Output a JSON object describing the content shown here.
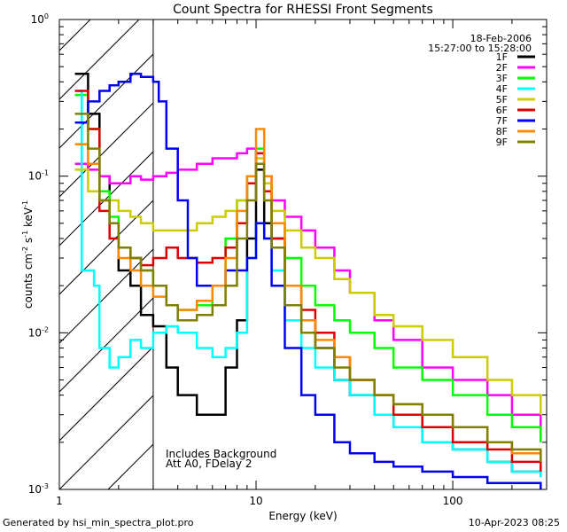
{
  "chart_data": {
    "type": "line",
    "title": "Count Spectra for RHESSI Front Segments",
    "xlabel": "Energy (keV)",
    "ylabel": "counts cm-2 s-1 keV-1",
    "xscale": "log",
    "yscale": "log",
    "xlim": [
      1,
      300
    ],
    "ylim": [
      0.001,
      1
    ],
    "x_ticks": [
      "1",
      "10",
      "100"
    ],
    "y_ticks": [
      "10-3",
      "10-2",
      "10-1",
      "100"
    ],
    "legend_position": "top-right",
    "date_label": "18-Feb-2006",
    "time_label": "15:27:00 to 15:28:00",
    "annotations": [
      "Includes Background",
      "Att A0, FDelay 2"
    ],
    "attenuator_cutoff_kev": 3,
    "series": [
      {
        "name": "1F",
        "color": "#000000",
        "points": [
          [
            1.2,
            0.45
          ],
          [
            1.4,
            0.25
          ],
          [
            1.6,
            0.1
          ],
          [
            1.8,
            0.05
          ],
          [
            2.0,
            0.025
          ],
          [
            2.3,
            0.02
          ],
          [
            2.6,
            0.013
          ],
          [
            3.0,
            0.011
          ],
          [
            3.5,
            0.006
          ],
          [
            4.0,
            0.004
          ],
          [
            5.0,
            0.003
          ],
          [
            6.0,
            0.003
          ],
          [
            7.0,
            0.006
          ],
          [
            8.0,
            0.012
          ],
          [
            9.0,
            0.04
          ],
          [
            10.0,
            0.11
          ],
          [
            11.0,
            0.05
          ],
          [
            12.0,
            0.04
          ],
          [
            14.0,
            0.02
          ],
          [
            17.0,
            0.012
          ],
          [
            20.0,
            0.008
          ],
          [
            25.0,
            0.005
          ],
          [
            30.0,
            0.004
          ],
          [
            40.0,
            0.003
          ],
          [
            50.0,
            0.0025
          ],
          [
            70.0,
            0.002
          ],
          [
            100.0,
            0.0018
          ],
          [
            150.0,
            0.0015
          ],
          [
            200.0,
            0.0013
          ],
          [
            280.0,
            0.0012
          ]
        ]
      },
      {
        "name": "2F",
        "color": "#ff00ff",
        "points": [
          [
            1.2,
            0.12
          ],
          [
            1.4,
            0.11
          ],
          [
            1.6,
            0.1
          ],
          [
            1.8,
            0.09
          ],
          [
            2.0,
            0.09
          ],
          [
            2.3,
            0.1
          ],
          [
            2.6,
            0.095
          ],
          [
            3.0,
            0.1
          ],
          [
            3.5,
            0.105
          ],
          [
            4.0,
            0.11
          ],
          [
            5.0,
            0.12
          ],
          [
            6.0,
            0.13
          ],
          [
            7.0,
            0.13
          ],
          [
            8.0,
            0.14
          ],
          [
            9.0,
            0.15
          ],
          [
            10.0,
            0.14
          ],
          [
            11.0,
            0.1
          ],
          [
            12.0,
            0.07
          ],
          [
            14.0,
            0.055
          ],
          [
            17.0,
            0.045
          ],
          [
            20.0,
            0.035
          ],
          [
            25.0,
            0.025
          ],
          [
            30.0,
            0.018
          ],
          [
            40.0,
            0.012
          ],
          [
            50.0,
            0.009
          ],
          [
            70.0,
            0.006
          ],
          [
            100.0,
            0.005
          ],
          [
            150.0,
            0.004
          ],
          [
            200.0,
            0.003
          ],
          [
            280.0,
            0.002
          ]
        ]
      },
      {
        "name": "3F",
        "color": "#00ff00",
        "points": [
          [
            1.2,
            0.33
          ],
          [
            1.4,
            0.2
          ],
          [
            1.6,
            0.08
          ],
          [
            1.8,
            0.055
          ],
          [
            2.0,
            0.035
          ],
          [
            2.3,
            0.03
          ],
          [
            2.6,
            0.025
          ],
          [
            3.0,
            0.02
          ],
          [
            3.5,
            0.015
          ],
          [
            4.0,
            0.014
          ],
          [
            5.0,
            0.015
          ],
          [
            6.0,
            0.02
          ],
          [
            7.0,
            0.04
          ],
          [
            8.0,
            0.07
          ],
          [
            9.0,
            0.1
          ],
          [
            10.0,
            0.15
          ],
          [
            11.0,
            0.09
          ],
          [
            12.0,
            0.05
          ],
          [
            14.0,
            0.03
          ],
          [
            17.0,
            0.02
          ],
          [
            20.0,
            0.015
          ],
          [
            25.0,
            0.012
          ],
          [
            30.0,
            0.01
          ],
          [
            40.0,
            0.008
          ],
          [
            50.0,
            0.006
          ],
          [
            70.0,
            0.005
          ],
          [
            100.0,
            0.004
          ],
          [
            150.0,
            0.003
          ],
          [
            200.0,
            0.0025
          ],
          [
            280.0,
            0.002
          ]
        ]
      },
      {
        "name": "4F",
        "color": "#00ffff",
        "points": [
          [
            1.2,
            0.35
          ],
          [
            1.3,
            0.025
          ],
          [
            1.5,
            0.02
          ],
          [
            1.6,
            0.008
          ],
          [
            1.8,
            0.006
          ],
          [
            2.0,
            0.007
          ],
          [
            2.3,
            0.009
          ],
          [
            2.6,
            0.008
          ],
          [
            3.0,
            0.01
          ],
          [
            3.5,
            0.011
          ],
          [
            4.0,
            0.01
          ],
          [
            5.0,
            0.008
          ],
          [
            6.0,
            0.007
          ],
          [
            7.0,
            0.008
          ],
          [
            8.0,
            0.01
          ],
          [
            9.0,
            0.03
          ],
          [
            10.0,
            0.05
          ],
          [
            11.0,
            0.04
          ],
          [
            12.0,
            0.025
          ],
          [
            14.0,
            0.012
          ],
          [
            17.0,
            0.008
          ],
          [
            20.0,
            0.006
          ],
          [
            25.0,
            0.005
          ],
          [
            30.0,
            0.004
          ],
          [
            40.0,
            0.003
          ],
          [
            50.0,
            0.0025
          ],
          [
            70.0,
            0.002
          ],
          [
            100.0,
            0.0018
          ],
          [
            150.0,
            0.0015
          ],
          [
            200.0,
            0.0013
          ],
          [
            280.0,
            0.0012
          ]
        ]
      },
      {
        "name": "5F",
        "color": "#cccc00",
        "points": [
          [
            1.2,
            0.11
          ],
          [
            1.4,
            0.08
          ],
          [
            1.6,
            0.07
          ],
          [
            1.8,
            0.07
          ],
          [
            2.0,
            0.06
          ],
          [
            2.3,
            0.055
          ],
          [
            2.6,
            0.05
          ],
          [
            3.0,
            0.045
          ],
          [
            3.5,
            0.045
          ],
          [
            4.0,
            0.045
          ],
          [
            5.0,
            0.05
          ],
          [
            6.0,
            0.055
          ],
          [
            7.0,
            0.06
          ],
          [
            8.0,
            0.07
          ],
          [
            9.0,
            0.1
          ],
          [
            10.0,
            0.13
          ],
          [
            11.0,
            0.09
          ],
          [
            12.0,
            0.06
          ],
          [
            14.0,
            0.045
          ],
          [
            17.0,
            0.035
          ],
          [
            20.0,
            0.03
          ],
          [
            25.0,
            0.022
          ],
          [
            30.0,
            0.018
          ],
          [
            40.0,
            0.013
          ],
          [
            50.0,
            0.011
          ],
          [
            70.0,
            0.009
          ],
          [
            100.0,
            0.007
          ],
          [
            150.0,
            0.005
          ],
          [
            200.0,
            0.004
          ],
          [
            280.0,
            0.003
          ]
        ]
      },
      {
        "name": "6F",
        "color": "#dd0000",
        "points": [
          [
            1.2,
            0.35
          ],
          [
            1.4,
            0.2
          ],
          [
            1.6,
            0.06
          ],
          [
            1.8,
            0.04
          ],
          [
            2.0,
            0.035
          ],
          [
            2.3,
            0.03
          ],
          [
            2.6,
            0.027
          ],
          [
            3.0,
            0.03
          ],
          [
            3.5,
            0.035
          ],
          [
            4.0,
            0.03
          ],
          [
            5.0,
            0.028
          ],
          [
            6.0,
            0.03
          ],
          [
            7.0,
            0.035
          ],
          [
            8.0,
            0.05
          ],
          [
            9.0,
            0.09
          ],
          [
            10.0,
            0.14
          ],
          [
            11.0,
            0.08
          ],
          [
            12.0,
            0.04
          ],
          [
            14.0,
            0.02
          ],
          [
            17.0,
            0.014
          ],
          [
            20.0,
            0.01
          ],
          [
            25.0,
            0.007
          ],
          [
            30.0,
            0.005
          ],
          [
            40.0,
            0.004
          ],
          [
            50.0,
            0.003
          ],
          [
            70.0,
            0.0025
          ],
          [
            100.0,
            0.002
          ],
          [
            150.0,
            0.0018
          ],
          [
            200.0,
            0.0015
          ],
          [
            280.0,
            0.0013
          ]
        ]
      },
      {
        "name": "7F",
        "color": "#0000ee",
        "points": [
          [
            1.2,
            0.22
          ],
          [
            1.4,
            0.3
          ],
          [
            1.6,
            0.35
          ],
          [
            1.8,
            0.38
          ],
          [
            2.0,
            0.4
          ],
          [
            2.3,
            0.45
          ],
          [
            2.6,
            0.43
          ],
          [
            3.0,
            0.4
          ],
          [
            3.2,
            0.3
          ],
          [
            3.5,
            0.15
          ],
          [
            4.0,
            0.07
          ],
          [
            4.5,
            0.03
          ],
          [
            5.0,
            0.02
          ],
          [
            6.0,
            0.02
          ],
          [
            7.0,
            0.025
          ],
          [
            8.0,
            0.025
          ],
          [
            9.0,
            0.03
          ],
          [
            10.0,
            0.05
          ],
          [
            11.0,
            0.04
          ],
          [
            12.0,
            0.02
          ],
          [
            14.0,
            0.008
          ],
          [
            17.0,
            0.004
          ],
          [
            20.0,
            0.003
          ],
          [
            25.0,
            0.002
          ],
          [
            30.0,
            0.0017
          ],
          [
            40.0,
            0.0015
          ],
          [
            50.0,
            0.0014
          ],
          [
            70.0,
            0.0013
          ],
          [
            100.0,
            0.0012
          ],
          [
            150.0,
            0.0011
          ],
          [
            200.0,
            0.0011
          ],
          [
            280.0,
            0.001
          ]
        ]
      },
      {
        "name": "8F",
        "color": "#ff8800",
        "points": [
          [
            1.2,
            0.16
          ],
          [
            1.4,
            0.12
          ],
          [
            1.6,
            0.07
          ],
          [
            1.8,
            0.05
          ],
          [
            2.0,
            0.03
          ],
          [
            2.3,
            0.025
          ],
          [
            2.6,
            0.02
          ],
          [
            3.0,
            0.017
          ],
          [
            3.5,
            0.015
          ],
          [
            4.0,
            0.014
          ],
          [
            5.0,
            0.016
          ],
          [
            6.0,
            0.02
          ],
          [
            7.0,
            0.03
          ],
          [
            8.0,
            0.06
          ],
          [
            9.0,
            0.1
          ],
          [
            10.0,
            0.2
          ],
          [
            11.0,
            0.1
          ],
          [
            12.0,
            0.05
          ],
          [
            14.0,
            0.02
          ],
          [
            17.0,
            0.012
          ],
          [
            20.0,
            0.009
          ],
          [
            25.0,
            0.007
          ],
          [
            30.0,
            0.005
          ],
          [
            40.0,
            0.004
          ],
          [
            50.0,
            0.0035
          ],
          [
            70.0,
            0.003
          ],
          [
            100.0,
            0.0025
          ],
          [
            150.0,
            0.002
          ],
          [
            200.0,
            0.0017
          ],
          [
            280.0,
            0.0015
          ]
        ]
      },
      {
        "name": "9F",
        "color": "#808000",
        "points": [
          [
            1.2,
            0.25
          ],
          [
            1.4,
            0.15
          ],
          [
            1.6,
            0.07
          ],
          [
            1.8,
            0.05
          ],
          [
            2.0,
            0.035
          ],
          [
            2.3,
            0.03
          ],
          [
            2.6,
            0.025
          ],
          [
            3.0,
            0.02
          ],
          [
            3.5,
            0.015
          ],
          [
            4.0,
            0.012
          ],
          [
            5.0,
            0.013
          ],
          [
            6.0,
            0.015
          ],
          [
            7.0,
            0.02
          ],
          [
            8.0,
            0.04
          ],
          [
            9.0,
            0.07
          ],
          [
            10.0,
            0.12
          ],
          [
            11.0,
            0.07
          ],
          [
            12.0,
            0.035
          ],
          [
            14.0,
            0.015
          ],
          [
            17.0,
            0.01
          ],
          [
            20.0,
            0.008
          ],
          [
            25.0,
            0.006
          ],
          [
            30.0,
            0.005
          ],
          [
            40.0,
            0.004
          ],
          [
            50.0,
            0.0035
          ],
          [
            70.0,
            0.003
          ],
          [
            100.0,
            0.0025
          ],
          [
            150.0,
            0.002
          ],
          [
            200.0,
            0.0018
          ],
          [
            280.0,
            0.0015
          ]
        ]
      }
    ]
  },
  "footer": {
    "left": "Generated by hsi_min_spectra_plot.pro",
    "right": "10-Apr-2023 08:25"
  }
}
